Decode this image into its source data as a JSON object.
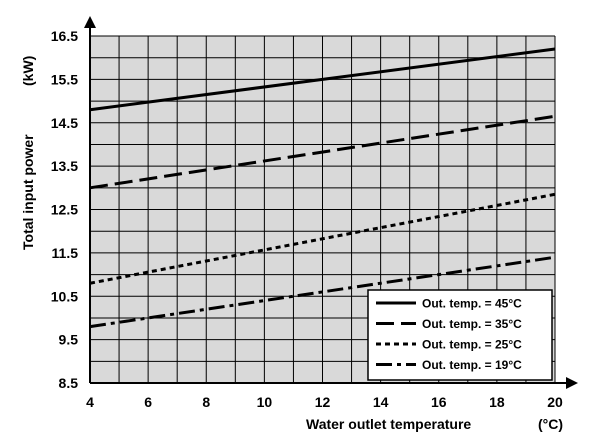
{
  "chart_data": {
    "type": "line",
    "title": "",
    "xlabel": "Water outlet temperature",
    "xlabel_unit": "(°C)",
    "ylabel": "Total input power",
    "ylabel_unit": "(kW)",
    "xlim": [
      4,
      20
    ],
    "ylim": [
      8.5,
      16.5
    ],
    "x_tick_labels": [
      "4",
      "6",
      "8",
      "10",
      "12",
      "14",
      "16",
      "18",
      "20"
    ],
    "y_tick_labels": [
      "8.5",
      "9.5",
      "10.5",
      "11.5",
      "12.5",
      "13.5",
      "14.5",
      "15.5",
      "16.5"
    ],
    "grid": true,
    "legend_position": "bottom-right",
    "series": [
      {
        "name": "Out. temp. = 45°C",
        "style": "solid",
        "x": [
          4,
          20
        ],
        "y": [
          14.8,
          16.2
        ]
      },
      {
        "name": "Out. temp. = 35°C",
        "style": "dashed",
        "x": [
          4,
          20
        ],
        "y": [
          13.0,
          14.65
        ]
      },
      {
        "name": "Out. temp. = 25°C",
        "style": "dotted",
        "x": [
          4,
          20
        ],
        "y": [
          10.8,
          12.85
        ]
      },
      {
        "name": "Out. temp. = 19°C",
        "style": "dashdot",
        "x": [
          4,
          20
        ],
        "y": [
          9.8,
          11.4
        ]
      }
    ]
  },
  "colors": {
    "plot_background": "#d9d9d9",
    "grid": "#000000",
    "lines": "#000000",
    "legend_background": "#ffffff"
  }
}
